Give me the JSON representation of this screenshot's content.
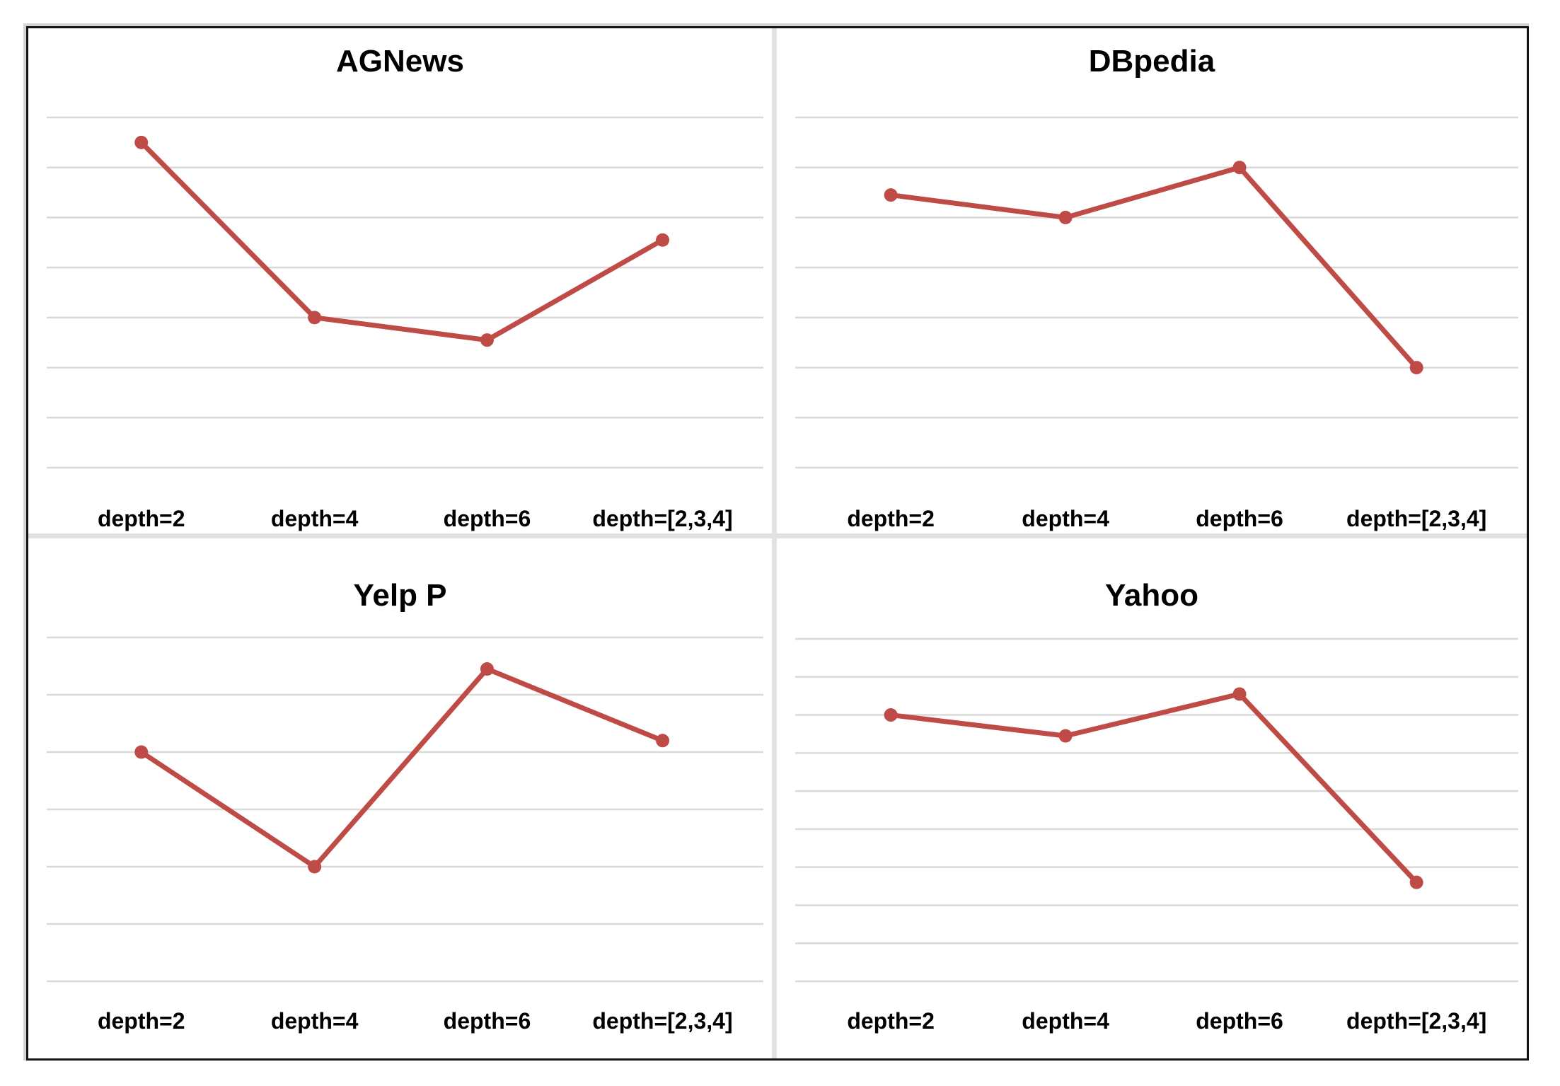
{
  "colors": {
    "line": "#bf4b47",
    "marker": "#bf4b47",
    "gridline": "#d9d9d9",
    "panel_background": "#ffffff",
    "divider": "#e2e2e2",
    "frame_border": "#141414",
    "label_text": "#000000"
  },
  "chart_data": [
    {
      "type": "line",
      "title": "AGNews",
      "categories": [
        "depth=2",
        "depth=4",
        "depth=6",
        "depth=[2,3,4]"
      ],
      "values": [
        6.5,
        3.0,
        2.55,
        4.55
      ],
      "gridline_count": 8,
      "ylim": [
        0,
        7
      ],
      "xlabel": "",
      "ylabel": "",
      "y_axis_tick_labels": "none (values estimated in gridline units, bottom gridline = 0)",
      "legend_position": "none",
      "grid": "horizontal only"
    },
    {
      "type": "line",
      "title": "DBpedia",
      "categories": [
        "depth=2",
        "depth=4",
        "depth=6",
        "depth=[2,3,4]"
      ],
      "values": [
        5.45,
        5.0,
        6.0,
        2.0
      ],
      "gridline_count": 8,
      "ylim": [
        0,
        7
      ],
      "xlabel": "",
      "ylabel": "",
      "y_axis_tick_labels": "none (values estimated in gridline units, bottom gridline = 0)",
      "legend_position": "none",
      "grid": "horizontal only"
    },
    {
      "type": "line",
      "title": "Yelp P",
      "categories": [
        "depth=2",
        "depth=4",
        "depth=6",
        "depth=[2,3,4]"
      ],
      "values": [
        4.0,
        2.0,
        5.45,
        4.2
      ],
      "gridline_count": 7,
      "ylim": [
        0,
        6
      ],
      "xlabel": "",
      "ylabel": "",
      "y_axis_tick_labels": "none (values estimated in gridline units, bottom gridline = 0)",
      "legend_position": "none",
      "grid": "horizontal only"
    },
    {
      "type": "line",
      "title": "Yahoo",
      "categories": [
        "depth=2",
        "depth=4",
        "depth=6",
        "depth=[2,3,4]"
      ],
      "values": [
        7.0,
        6.45,
        7.55,
        2.6
      ],
      "gridline_count": 10,
      "ylim": [
        0,
        9
      ],
      "xlabel": "",
      "ylabel": "",
      "y_axis_tick_labels": "none (values estimated in gridline units, bottom gridline = 0)",
      "legend_position": "none",
      "grid": "horizontal only"
    }
  ]
}
